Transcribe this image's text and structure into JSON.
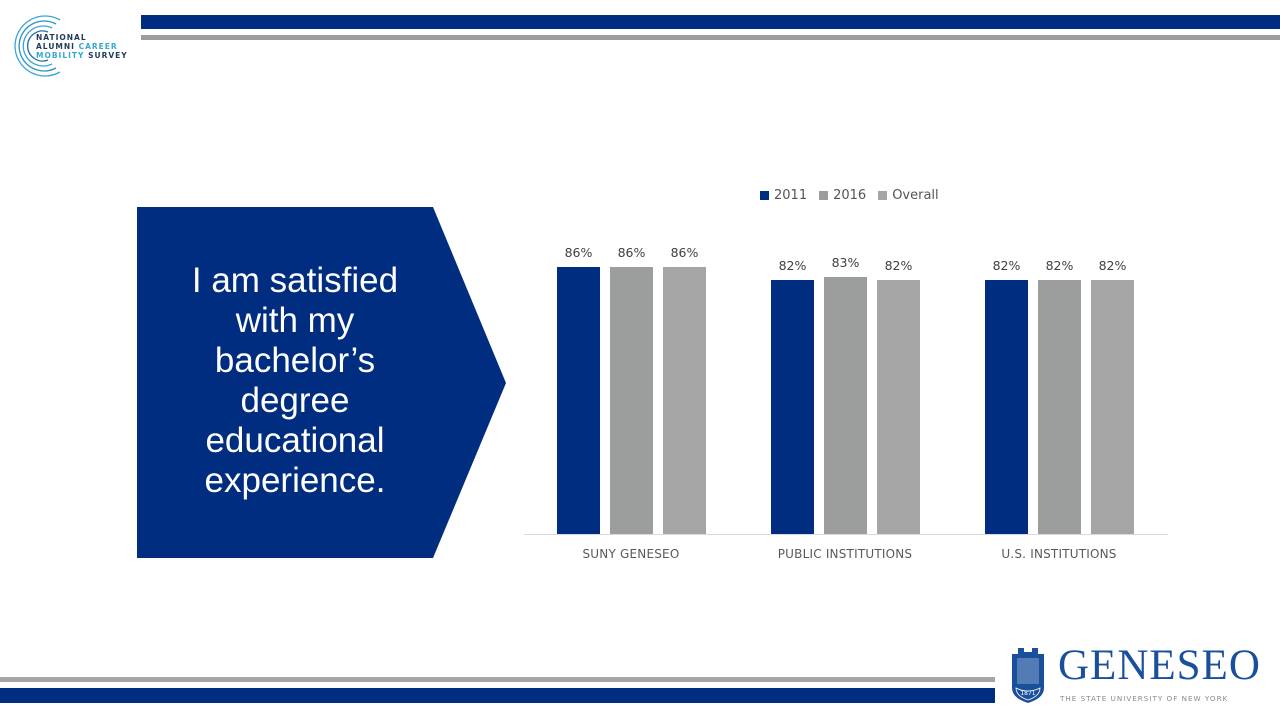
{
  "branding": {
    "survey_logo_lines": [
      "NATIONAL",
      "ALUMNI",
      "CAREER",
      "MOBILITY",
      "SURVEY"
    ],
    "survey_logo_text": "NATIONAL ALUMNI CAREER MOBILITY SURVEY",
    "university_name": "GENESEO",
    "university_tagline": "THE STATE UNIVERSITY OF NEW YORK",
    "seal_year": "1871",
    "colors": {
      "brand_blue": "#002d7f",
      "gray": "#a5a5a5",
      "light_blue": "#3aa6d6"
    }
  },
  "question": {
    "text": "I am satisfied with my bachelor’s degree educational experience.",
    "lines": [
      "I am satisfied",
      "with my",
      "bachelor’s",
      "degree",
      "educational",
      "experience."
    ]
  },
  "chart_data": {
    "type": "bar",
    "title": "",
    "xlabel": "",
    "ylabel": "",
    "ylim": [
      0,
      100
    ],
    "grid": false,
    "legend_position": "top",
    "categories": [
      "SUNY GENESEO",
      "PUBLIC INSTITUTIONS",
      "U.S. INSTITUTIONS"
    ],
    "series": [
      {
        "name": "2011",
        "color": "#002d7f",
        "values": [
          86,
          82,
          82
        ],
        "labels": [
          "86%",
          "82%",
          "82%"
        ]
      },
      {
        "name": "2016",
        "color": "#9c9e9d",
        "values": [
          86,
          83,
          82
        ],
        "labels": [
          "86%",
          "83%",
          "82%"
        ]
      },
      {
        "name": "Overall",
        "color": "#a5a5a5",
        "values": [
          86,
          82,
          82
        ],
        "labels": [
          "86%",
          "82%",
          "82%"
        ]
      }
    ]
  }
}
